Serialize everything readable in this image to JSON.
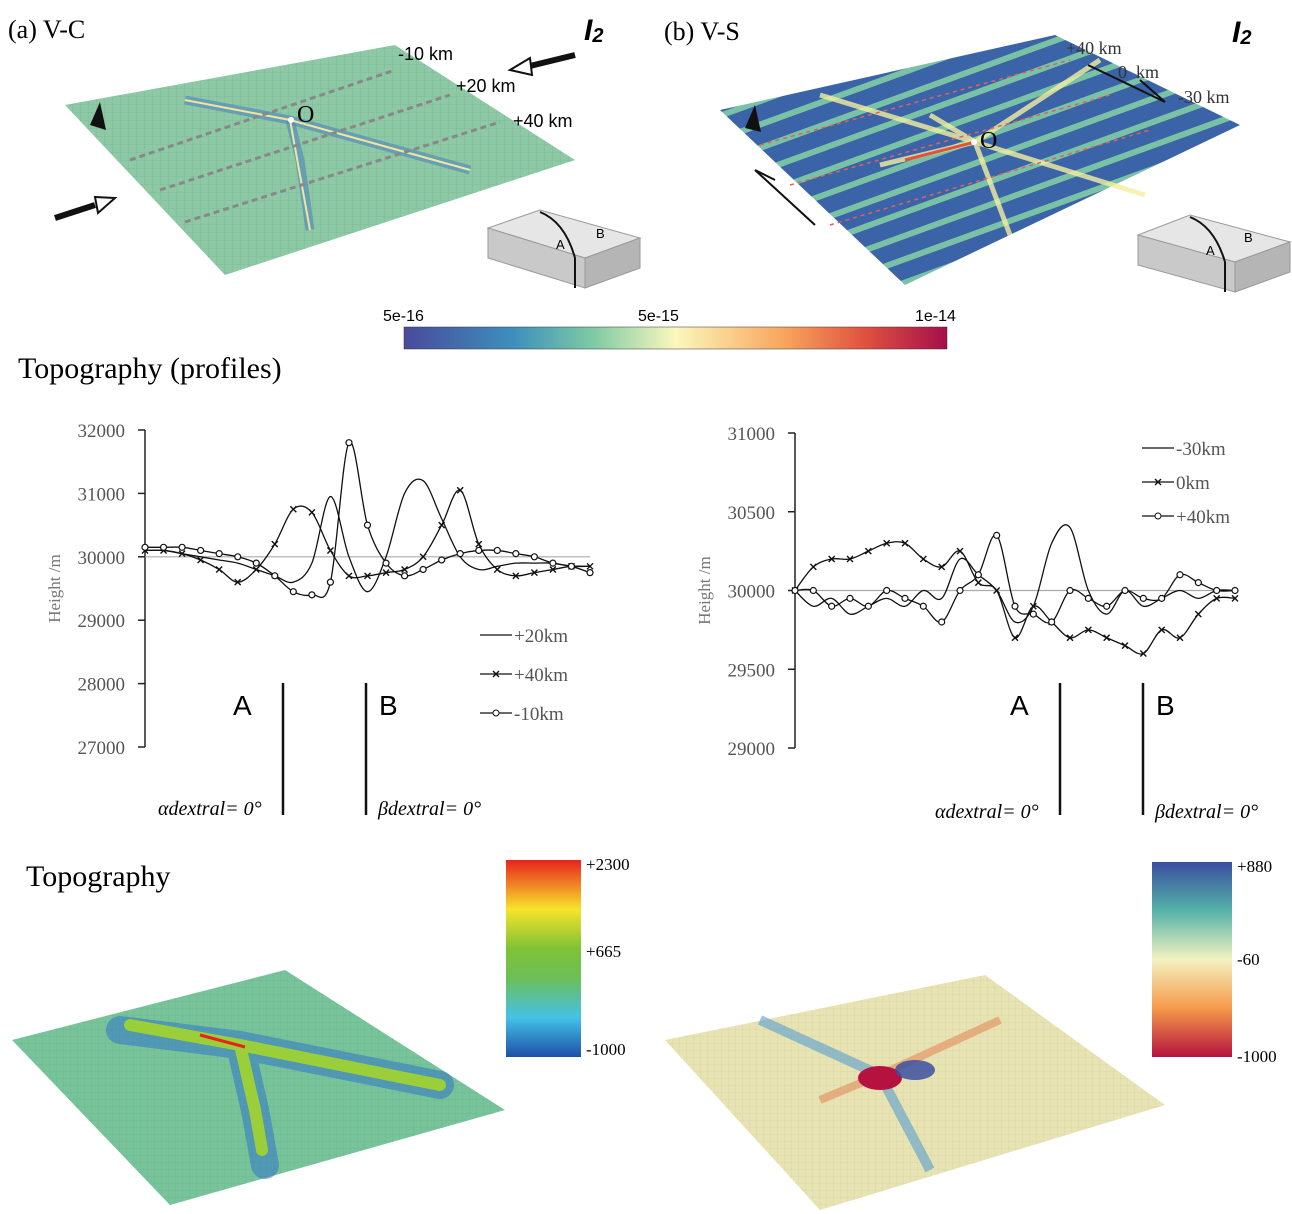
{
  "panels": [
    {
      "label": "(a) V-C",
      "stress": "I",
      "stress_sub": "2",
      "profile_labels": [
        "-10 km",
        "+20 km",
        "+40 km"
      ],
      "origin": "O",
      "inset": [
        "A",
        "B"
      ]
    },
    {
      "label": "(b) V-S",
      "stress": "I",
      "stress_sub": "2",
      "profile_labels": [
        "+40 km",
        "0  km",
        "-30 km"
      ],
      "origin": "O",
      "inset": [
        "A",
        "B"
      ]
    }
  ],
  "colorbar": {
    "labels": [
      "5e-16",
      "5e-15",
      "1e-14"
    ]
  },
  "profiles_title": "Topography (profiles)",
  "chart_data": [
    {
      "type": "line",
      "y_label": "Height /m",
      "ylim": [
        27000,
        32000
      ],
      "yticks": [
        27000,
        28000,
        29000,
        30000,
        31000,
        32000
      ],
      "baseline": 30000,
      "legend": "bottom-right",
      "annotations": [
        "A",
        "B",
        "αdextral= 0°",
        "βdextral= 0°"
      ],
      "series": [
        {
          "name": "+20km",
          "color": "#111111",
          "marker": "none",
          "values": [
            30100,
            30100,
            30050,
            30000,
            29950,
            29900,
            29800,
            29700,
            29600,
            29900,
            30950,
            30000,
            29450,
            30000,
            31000,
            31200,
            30600,
            30000,
            29800,
            29850,
            29900,
            29900,
            29900,
            29850,
            29850
          ]
        },
        {
          "name": "+40km",
          "color": "#111111",
          "marker": "x",
          "values": [
            30100,
            30100,
            30050,
            29950,
            29800,
            29600,
            29800,
            30200,
            30750,
            30700,
            30100,
            29700,
            29700,
            29750,
            29800,
            30000,
            30500,
            31050,
            30200,
            29800,
            29700,
            29750,
            29800,
            29850,
            29850
          ]
        },
        {
          "name": "-10km",
          "color": "#111111",
          "marker": "circle",
          "values": [
            30150,
            30150,
            30150,
            30100,
            30050,
            30000,
            29900,
            29700,
            29450,
            29400,
            29600,
            31800,
            30500,
            29900,
            29700,
            29800,
            29950,
            30050,
            30100,
            30100,
            30050,
            30000,
            29900,
            29850,
            29750
          ]
        }
      ]
    },
    {
      "type": "line",
      "y_label": "Height /m",
      "ylim": [
        29000,
        31000
      ],
      "yticks": [
        29000,
        29500,
        30000,
        30500,
        31000
      ],
      "baseline": 30000,
      "legend": "top-right",
      "annotations": [
        "A",
        "B",
        "αdextral= 0°",
        "βdextral= 0°"
      ],
      "series": [
        {
          "name": "-30km",
          "color": "#111111",
          "marker": "none",
          "values": [
            30000,
            29900,
            29950,
            29850,
            29900,
            29950,
            29900,
            30000,
            29950,
            30200,
            30100,
            30000,
            29800,
            29900,
            30300,
            30400,
            30000,
            29850,
            30000,
            29900,
            29950,
            30000,
            29950,
            30000,
            30000
          ]
        },
        {
          "name": "0km",
          "color": "#111111",
          "marker": "x",
          "values": [
            30000,
            30150,
            30200,
            30200,
            30250,
            30300,
            30300,
            30200,
            30150,
            30250,
            30050,
            30000,
            29700,
            29900,
            29800,
            29700,
            29750,
            29700,
            29650,
            29600,
            29750,
            29700,
            29850,
            29950,
            29950
          ]
        },
        {
          "name": "+40km",
          "color": "#111111",
          "marker": "circle",
          "values": [
            30000,
            30000,
            29900,
            29950,
            29900,
            30000,
            29950,
            29900,
            29800,
            30000,
            30100,
            30350,
            29900,
            29850,
            29800,
            30000,
            29950,
            29900,
            30000,
            29950,
            29950,
            30100,
            30050,
            30000,
            30000
          ]
        }
      ]
    }
  ],
  "topography_title": "Topography",
  "topo_colorbars": [
    {
      "labels": [
        "+2300",
        "+665",
        "-1000"
      ]
    },
    {
      "labels": [
        "+880",
        "-60",
        "-1000"
      ]
    }
  ]
}
